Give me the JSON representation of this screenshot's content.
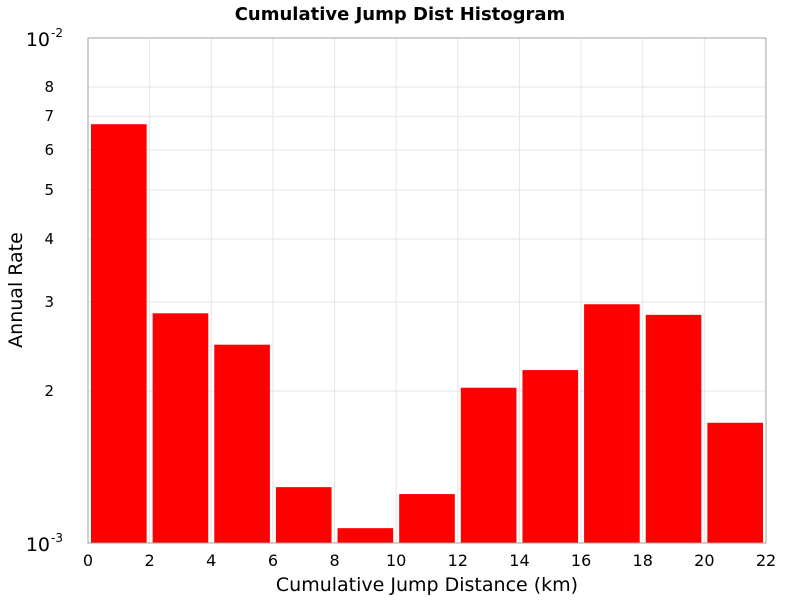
{
  "chart_data": {
    "type": "bar",
    "title": "Cumulative Jump Dist Histogram",
    "xlabel": "Cumulative Jump Distance (km)",
    "ylabel": "Annual Rate",
    "y_scale": "log",
    "xlim": [
      0,
      22
    ],
    "ylim": [
      0.001,
      0.01
    ],
    "x_ticks": [
      "0",
      "2",
      "4",
      "6",
      "8",
      "10",
      "12",
      "14",
      "16",
      "18",
      "20",
      "22"
    ],
    "y_decade_ticks": [
      {
        "base": "10",
        "exponent": "-2",
        "value": 0.01
      },
      {
        "base": "10",
        "exponent": "-3",
        "value": 0.001
      }
    ],
    "y_minor_ticks": [
      {
        "label": "8",
        "value": 0.008
      },
      {
        "label": "7",
        "value": 0.007
      },
      {
        "label": "6",
        "value": 0.006
      },
      {
        "label": "5",
        "value": 0.005
      },
      {
        "label": "4",
        "value": 0.004
      },
      {
        "label": "3",
        "value": 0.003
      },
      {
        "label": "2",
        "value": 0.002
      }
    ],
    "bins": [
      {
        "x0": 0,
        "x1": 2,
        "value": 0.00675
      },
      {
        "x0": 2,
        "x1": 4,
        "value": 0.00285
      },
      {
        "x0": 4,
        "x1": 6,
        "value": 0.00247
      },
      {
        "x0": 6,
        "x1": 8,
        "value": 0.00129
      },
      {
        "x0": 8,
        "x1": 10,
        "value": 0.00107
      },
      {
        "x0": 10,
        "x1": 12,
        "value": 0.00125
      },
      {
        "x0": 12,
        "x1": 14,
        "value": 0.00203
      },
      {
        "x0": 14,
        "x1": 16,
        "value": 0.0022
      },
      {
        "x0": 16,
        "x1": 18,
        "value": 0.00297
      },
      {
        "x0": 18,
        "x1": 20,
        "value": 0.00283
      },
      {
        "x0": 20,
        "x1": 22,
        "value": 0.00173
      }
    ],
    "bar_color": "#ff0000",
    "grid": true
  }
}
